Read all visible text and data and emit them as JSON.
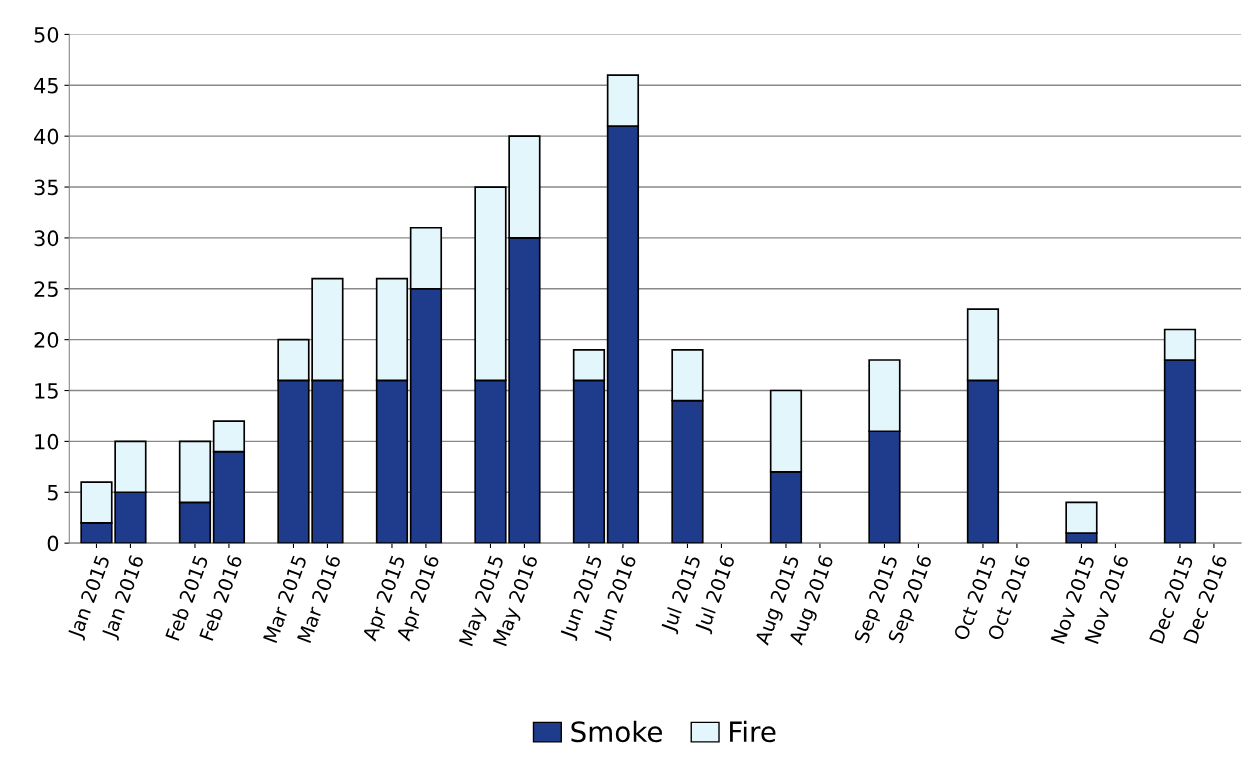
{
  "chart_data": {
    "type": "bar",
    "stacked": true,
    "categories": [
      "Jan 2015",
      "Jan 2016",
      "Feb 2015",
      "Feb 2016",
      "Mar 2015",
      "Mar 2016",
      "Apr 2015",
      "Apr 2016",
      "May 2015",
      "May 2016",
      "Jun 2015",
      "Jun 2016",
      "Jul 2015",
      "Jul 2016",
      "Aug 2015",
      "Aug 2016",
      "Sep 2015",
      "Sep 2016",
      "Oct 2015",
      "Oct 2016",
      "Nov 2015",
      "Nov 2016",
      "Dec 2015",
      "Dec 2016"
    ],
    "series": [
      {
        "name": "Smoke",
        "color": "#1f3c8c",
        "values": [
          2,
          5,
          4,
          9,
          16,
          16,
          16,
          25,
          16,
          30,
          16,
          41,
          14,
          null,
          7,
          null,
          11,
          null,
          16,
          null,
          1,
          null,
          18,
          null
        ]
      },
      {
        "name": "Fire",
        "color": "#e3f6fb",
        "values": [
          4,
          5,
          6,
          3,
          4,
          10,
          10,
          6,
          19,
          10,
          3,
          5,
          5,
          null,
          8,
          null,
          7,
          null,
          7,
          null,
          3,
          null,
          3,
          null
        ]
      }
    ],
    "ylim": [
      0,
      50
    ],
    "yticks": [
      0,
      5,
      10,
      15,
      20,
      25,
      30,
      35,
      40,
      45,
      50
    ],
    "grid": "y",
    "legend": "bottom"
  }
}
